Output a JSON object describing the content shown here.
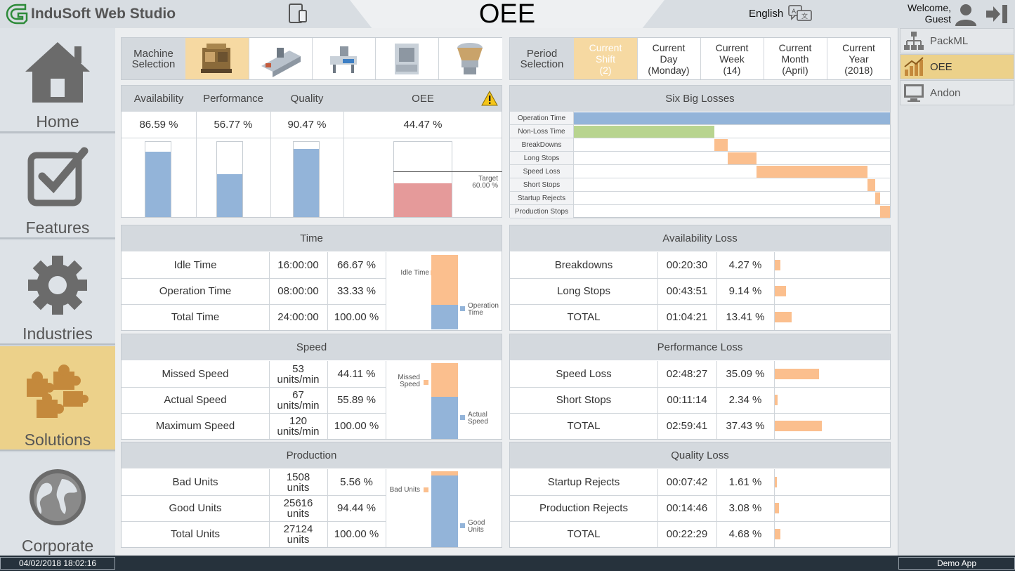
{
  "header": {
    "logo_text": "InduSoft Web Studio",
    "title": "OEE",
    "language": "English",
    "welcome_line1": "Welcome,",
    "welcome_line2": "Guest"
  },
  "left_nav": [
    {
      "label": "Home",
      "icon": "home-icon"
    },
    {
      "label": "Features",
      "icon": "checkbox-icon"
    },
    {
      "label": "Industries",
      "icon": "gear-icon"
    },
    {
      "label": "Solutions",
      "icon": "puzzle-icon",
      "active": true
    },
    {
      "label": "Corporate",
      "icon": "globe-icon"
    }
  ],
  "right_nav": [
    {
      "label": "PackML",
      "icon": "hierarchy-icon"
    },
    {
      "label": "OEE",
      "icon": "chart-growth-icon",
      "active": true
    },
    {
      "label": "Andon",
      "icon": "monitor-icon"
    }
  ],
  "machine_selection": {
    "label": "Machine Selection",
    "machines": [
      "machine-1-icon",
      "machine-2-icon",
      "machine-3-icon",
      "machine-4-icon",
      "machine-5-icon"
    ],
    "selected_index": 0
  },
  "period_selection": {
    "label": "Period Selection",
    "periods": [
      {
        "line1": "Current",
        "line2": "Shift",
        "line3": "(2)",
        "active": true
      },
      {
        "line1": "Current",
        "line2": "Day",
        "line3": "(Monday)"
      },
      {
        "line1": "Current",
        "line2": "Week",
        "line3": "(14)"
      },
      {
        "line1": "Current",
        "line2": "Month",
        "line3": "(April)"
      },
      {
        "line1": "Current",
        "line2": "Year",
        "line3": "(2018)"
      }
    ]
  },
  "kpis": {
    "availability": {
      "label": "Availability",
      "value": "86.59 %",
      "fraction": 0.8659
    },
    "performance": {
      "label": "Performance",
      "value": "56.77 %",
      "fraction": 0.5677
    },
    "quality": {
      "label": "Quality",
      "value": "90.47 %",
      "fraction": 0.9047
    },
    "oee": {
      "label": "OEE",
      "value": "44.47 %",
      "fraction": 0.4447,
      "target_label": "Target",
      "target_value": "60.00 %",
      "target_fraction": 0.6
    }
  },
  "six_big_losses": {
    "title": "Six Big Losses",
    "rows": [
      {
        "label": "Operation Time",
        "start": 0,
        "width": 1.0,
        "color": "#93b4d9"
      },
      {
        "label": "Non-Loss Time",
        "start": 0,
        "width": 0.4447,
        "color": "#b8d48f"
      },
      {
        "label": "BreakDowns",
        "start": 0.4447,
        "width": 0.0427,
        "color": "#fbbf8e"
      },
      {
        "label": "Long Stops",
        "start": 0.4874,
        "width": 0.0914,
        "color": "#fbbf8e"
      },
      {
        "label": "Speed Loss",
        "start": 0.5788,
        "width": 0.3509,
        "color": "#fbbf8e"
      },
      {
        "label": "Short Stops",
        "start": 0.9297,
        "width": 0.0234,
        "color": "#fbbf8e"
      },
      {
        "label": "Startup Rejects",
        "start": 0.9531,
        "width": 0.0161,
        "color": "#fbbf8e"
      },
      {
        "label": "Production Stops",
        "start": 0.9692,
        "width": 0.0308,
        "color": "#fbbf8e"
      }
    ]
  },
  "time": {
    "title": "Time",
    "rows": [
      {
        "label": "Idle Time",
        "value": "16:00:00",
        "percent": "66.67 %"
      },
      {
        "label": "Operation Time",
        "value": "08:00:00",
        "percent": "33.33 %"
      },
      {
        "label": "Total Time",
        "value": "24:00:00",
        "percent": "100.00 %"
      }
    ],
    "chart": {
      "top_label": "Idle Time",
      "bottom_label_1": "Operation",
      "bottom_label_2": "Time",
      "top_fraction": 0.6667,
      "bottom_fraction": 0.3333
    }
  },
  "speed": {
    "title": "Speed",
    "rows": [
      {
        "label": "Missed Speed",
        "value": "53",
        "unit": "units/min",
        "percent": "44.11 %"
      },
      {
        "label": "Actual Speed",
        "value": "67",
        "unit": "units/min",
        "percent": "55.89 %"
      },
      {
        "label": "Maximum Speed",
        "value": "120",
        "unit": "units/min",
        "percent": "100.00 %"
      }
    ],
    "chart": {
      "top_label_1": "Missed",
      "top_label_2": "Speed",
      "bottom_label_1": "Actual",
      "bottom_label_2": "Speed",
      "top_fraction": 0.4411,
      "bottom_fraction": 0.5589
    }
  },
  "production": {
    "title": "Production",
    "rows": [
      {
        "label": "Bad Units",
        "value": "1508",
        "unit": "units",
        "percent": "5.56 %"
      },
      {
        "label": "Good Units",
        "value": "25616",
        "unit": "units",
        "percent": "94.44 %"
      },
      {
        "label": "Total Units",
        "value": "27124",
        "unit": "units",
        "percent": "100.00 %"
      }
    ],
    "chart": {
      "top_label": "Bad Units",
      "bottom_label_1": "Good",
      "bottom_label_2": "Units",
      "top_fraction": 0.0556,
      "bottom_fraction": 0.9444
    }
  },
  "availability_loss": {
    "title": "Availability Loss",
    "rows": [
      {
        "label": "Breakdowns",
        "value": "00:20:30",
        "percent": "4.27 %",
        "fraction": 0.0427
      },
      {
        "label": "Long Stops",
        "value": "00:43:51",
        "percent": "9.14 %",
        "fraction": 0.0914
      },
      {
        "label": "TOTAL",
        "value": "01:04:21",
        "percent": "13.41 %",
        "fraction": 0.1341
      }
    ]
  },
  "performance_loss": {
    "title": "Performance Loss",
    "rows": [
      {
        "label": "Speed Loss",
        "value": "02:48:27",
        "percent": "35.09 %",
        "fraction": 0.3509
      },
      {
        "label": "Short Stops",
        "value": "00:11:14",
        "percent": "2.34 %",
        "fraction": 0.0234
      },
      {
        "label": "TOTAL",
        "value": "02:59:41",
        "percent": "37.43 %",
        "fraction": 0.3743
      }
    ]
  },
  "quality_loss": {
    "title": "Quality Loss",
    "rows": [
      {
        "label": "Startup Rejects",
        "value": "00:07:42",
        "percent": "1.61 %",
        "fraction": 0.0161
      },
      {
        "label": "Production Rejects",
        "value": "00:14:46",
        "percent": "3.08 %",
        "fraction": 0.0308
      },
      {
        "label": "TOTAL",
        "value": "00:22:29",
        "percent": "4.68 %",
        "fraction": 0.0468
      }
    ]
  },
  "footer": {
    "datetime": "04/02/2018 18:02:16",
    "app": "Demo App"
  },
  "colors": {
    "accent": "#ecd18a",
    "bar_blue": "#93b4d9",
    "bar_orange": "#fbbf8e",
    "bar_green": "#b8d48f",
    "oee_red": "#e59a9a"
  }
}
